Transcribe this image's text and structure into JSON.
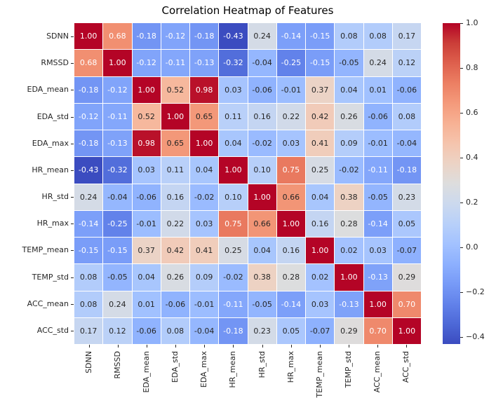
{
  "chart_data": {
    "type": "heatmap",
    "title": "Correlation Heatmap of Features",
    "labels": [
      "SDNN",
      "RMSSD",
      "EDA_mean",
      "EDA_std",
      "EDA_max",
      "HR_mean",
      "HR_std",
      "HR_max",
      "TEMP_mean",
      "TEMP_std",
      "ACC_mean",
      "ACC_std"
    ],
    "matrix": [
      [
        1.0,
        0.68,
        -0.18,
        -0.12,
        -0.18,
        -0.43,
        0.24,
        -0.14,
        -0.15,
        0.08,
        0.08,
        0.17
      ],
      [
        0.68,
        1.0,
        -0.12,
        -0.11,
        -0.13,
        -0.32,
        -0.04,
        -0.25,
        -0.15,
        -0.05,
        0.24,
        0.12
      ],
      [
        -0.18,
        -0.12,
        1.0,
        0.52,
        0.98,
        0.03,
        -0.06,
        -0.01,
        0.37,
        0.04,
        0.01,
        -0.06
      ],
      [
        -0.12,
        -0.11,
        0.52,
        1.0,
        0.65,
        0.11,
        0.16,
        0.22,
        0.42,
        0.26,
        -0.06,
        0.08
      ],
      [
        -0.18,
        -0.13,
        0.98,
        0.65,
        1.0,
        0.04,
        -0.02,
        0.03,
        0.41,
        0.09,
        -0.01,
        -0.04
      ],
      [
        -0.43,
        -0.32,
        0.03,
        0.11,
        0.04,
        1.0,
        0.1,
        0.75,
        0.25,
        -0.02,
        -0.11,
        -0.18
      ],
      [
        0.24,
        -0.04,
        -0.06,
        0.16,
        -0.02,
        0.1,
        1.0,
        0.66,
        0.04,
        0.38,
        -0.05,
        0.23
      ],
      [
        -0.14,
        -0.25,
        -0.01,
        0.22,
        0.03,
        0.75,
        0.66,
        1.0,
        0.16,
        0.28,
        -0.14,
        0.05
      ],
      [
        -0.15,
        -0.15,
        0.37,
        0.42,
        0.41,
        0.25,
        0.04,
        0.16,
        1.0,
        0.02,
        0.03,
        -0.07
      ],
      [
        0.08,
        -0.05,
        0.04,
        0.26,
        0.09,
        -0.02,
        0.38,
        0.28,
        0.02,
        1.0,
        -0.13,
        0.29
      ],
      [
        0.08,
        0.24,
        0.01,
        -0.06,
        -0.01,
        -0.11,
        -0.05,
        -0.14,
        0.03,
        -0.13,
        1.0,
        0.7
      ],
      [
        0.17,
        0.12,
        -0.06,
        0.08,
        -0.04,
        -0.18,
        0.23,
        0.05,
        -0.07,
        0.29,
        0.7,
        1.0
      ]
    ],
    "value_decimals": 2,
    "vmin": -0.43,
    "vmax": 1.0,
    "colormap_name": "coolwarm",
    "colormap_stops": [
      [
        0.0,
        "#3b4cc0"
      ],
      [
        0.0625,
        "#4d68d7"
      ],
      [
        0.125,
        "#6282ea"
      ],
      [
        0.1875,
        "#779af7"
      ],
      [
        0.25,
        "#8db0fe"
      ],
      [
        0.3125,
        "#a3c2ff"
      ],
      [
        0.375,
        "#b8d0f9"
      ],
      [
        0.4375,
        "#ccd9ee"
      ],
      [
        0.5,
        "#dddddd"
      ],
      [
        0.5625,
        "#ecd3c5"
      ],
      [
        0.625,
        "#f5c4ad"
      ],
      [
        0.6875,
        "#f7b194"
      ],
      [
        0.75,
        "#f49a7b"
      ],
      [
        0.8125,
        "#ec7f63"
      ],
      [
        0.875,
        "#de604d"
      ],
      [
        0.9375,
        "#cb3e38"
      ],
      [
        1.0,
        "#b40426"
      ]
    ],
    "annotation_text_dark": "#262626",
    "annotation_text_light": "#ffffff",
    "colorbar": {
      "tick_labels": [
        "1.0",
        "0.8",
        "0.6",
        "0.4",
        "0.2",
        "0.0",
        "−0.2",
        "−0.4"
      ],
      "tick_values": [
        1.0,
        0.8,
        0.6,
        0.4,
        0.2,
        0.0,
        -0.2,
        -0.4
      ],
      "position": "right"
    },
    "grid_line_color": "#ffffff",
    "legend": "colorbar"
  }
}
